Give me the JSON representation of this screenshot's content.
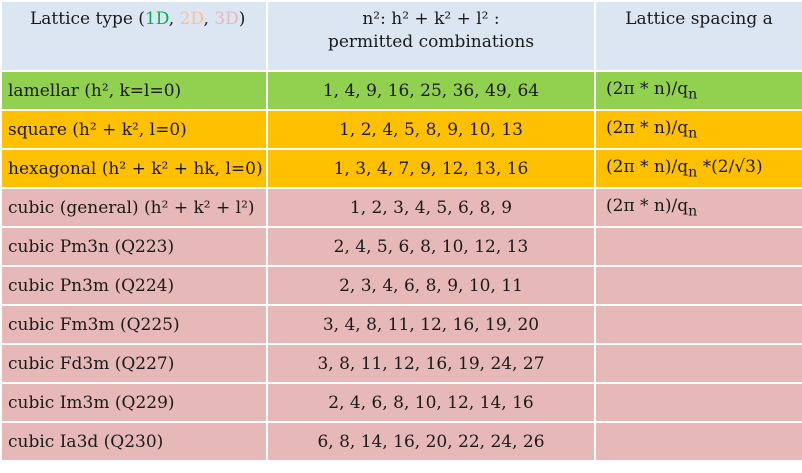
{
  "header": {
    "type_prefix": "Lattice type (",
    "type_1d": "1D",
    "type_sep1": ", ",
    "type_2d": "2D",
    "type_sep2": ", ",
    "type_3d": "3D",
    "type_suffix": ")",
    "combo_line1": "n²:   h² + k² + l² :",
    "combo_line2": "permitted combinations",
    "spacing": "Lattice spacing a"
  },
  "rows": [
    {
      "type": "lamellar (h², k=l=0)",
      "combinations": "1, 4, 9, 16, 25, 36, 49, 64",
      "spacing": "(2π * n)/q",
      "spacing_sub": "n",
      "spacing_extra": ""
    },
    {
      "type": "square (h² + k², l=0)",
      "combinations": "1, 2, 4, 5, 8, 9, 10, 13",
      "spacing": "(2π * n)/q",
      "spacing_sub": "n",
      "spacing_extra": ""
    },
    {
      "type": "hexagonal (h² + k² + hk, l=0)",
      "combinations": "1, 3, 4, 7, 9, 12, 13, 16",
      "spacing": "(2π * n)/q",
      "spacing_sub": "n",
      "spacing_extra": " *(2/√3)"
    },
    {
      "type": "cubic (general) (h² + k² + l²)",
      "combinations": "1, 2, 3, 4, 5, 6, 8, 9",
      "spacing": "(2π * n)/q",
      "spacing_sub": "n",
      "spacing_extra": ""
    },
    {
      "type": "cubic Pm3n (Q223)",
      "combinations": "2, 4, 5, 6, 8, 10, 12, 13",
      "spacing": "",
      "spacing_sub": "",
      "spacing_extra": ""
    },
    {
      "type": "cubic Pn3m (Q224)",
      "combinations": "2, 3, 4, 6, 8, 9, 10, 11",
      "spacing": "",
      "spacing_sub": "",
      "spacing_extra": ""
    },
    {
      "type": "cubic Fm3m (Q225)",
      "combinations": "3, 4, 8, 11, 12, 16, 19, 20",
      "spacing": "",
      "spacing_sub": "",
      "spacing_extra": ""
    },
    {
      "type": "cubic Fd3m (Q227)",
      "combinations": "3, 8, 11, 12, 16, 19, 24, 27",
      "spacing": "",
      "spacing_sub": "",
      "spacing_extra": ""
    },
    {
      "type": "cubic Im3m (Q229)",
      "combinations": "2, 4, 6, 8, 10, 12, 14, 16",
      "spacing": "",
      "spacing_sub": "",
      "spacing_extra": ""
    },
    {
      "type": "cubic Ia3d (Q230)",
      "combinations": "6, 8, 14, 16, 20, 22, 24, 26",
      "spacing": "",
      "spacing_sub": "",
      "spacing_extra": ""
    }
  ],
  "colors": {
    "header_bg": "#dce6f2",
    "lamellar": "#92d050",
    "two_d": "#ffc000",
    "three_d": "#e6b8b7",
    "label_1d": "#00b050",
    "label_2d": "#fac090",
    "label_3d": "#e6b8b7"
  }
}
